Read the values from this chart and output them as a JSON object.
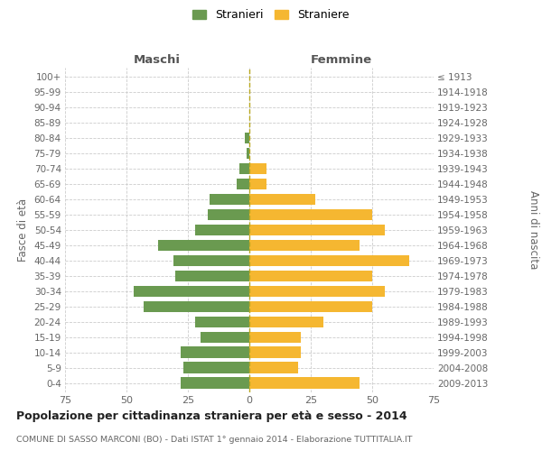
{
  "age_groups": [
    "0-4",
    "5-9",
    "10-14",
    "15-19",
    "20-24",
    "25-29",
    "30-34",
    "35-39",
    "40-44",
    "45-49",
    "50-54",
    "55-59",
    "60-64",
    "65-69",
    "70-74",
    "75-79",
    "80-84",
    "85-89",
    "90-94",
    "95-99",
    "100+"
  ],
  "birth_years": [
    "2009-2013",
    "2004-2008",
    "1999-2003",
    "1994-1998",
    "1989-1993",
    "1984-1988",
    "1979-1983",
    "1974-1978",
    "1969-1973",
    "1964-1968",
    "1959-1963",
    "1954-1958",
    "1949-1953",
    "1944-1948",
    "1939-1943",
    "1934-1938",
    "1929-1933",
    "1924-1928",
    "1919-1923",
    "1914-1918",
    "≤ 1913"
  ],
  "maschi": [
    28,
    27,
    28,
    20,
    22,
    43,
    47,
    30,
    31,
    37,
    22,
    17,
    16,
    5,
    4,
    1,
    2,
    0,
    0,
    0,
    0
  ],
  "femmine": [
    45,
    20,
    21,
    21,
    30,
    50,
    55,
    50,
    65,
    45,
    55,
    50,
    27,
    7,
    7,
    0,
    0,
    0,
    0,
    0,
    0
  ],
  "maschi_color": "#6a9a50",
  "femmine_color": "#f5b731",
  "title": "Popolazione per cittadinanza straniera per età e sesso - 2014",
  "subtitle": "COMUNE DI SASSO MARCONI (BO) - Dati ISTAT 1° gennaio 2014 - Elaborazione TUTTITALIA.IT",
  "ylabel_left": "Fasce di età",
  "ylabel_right": "Anni di nascita",
  "xlabel_maschi": "Maschi",
  "xlabel_femmine": "Femmine",
  "legend_maschi": "Stranieri",
  "legend_femmine": "Straniere",
  "xlim": 75,
  "background_color": "#ffffff",
  "grid_color": "#cccccc",
  "bar_height": 0.75
}
